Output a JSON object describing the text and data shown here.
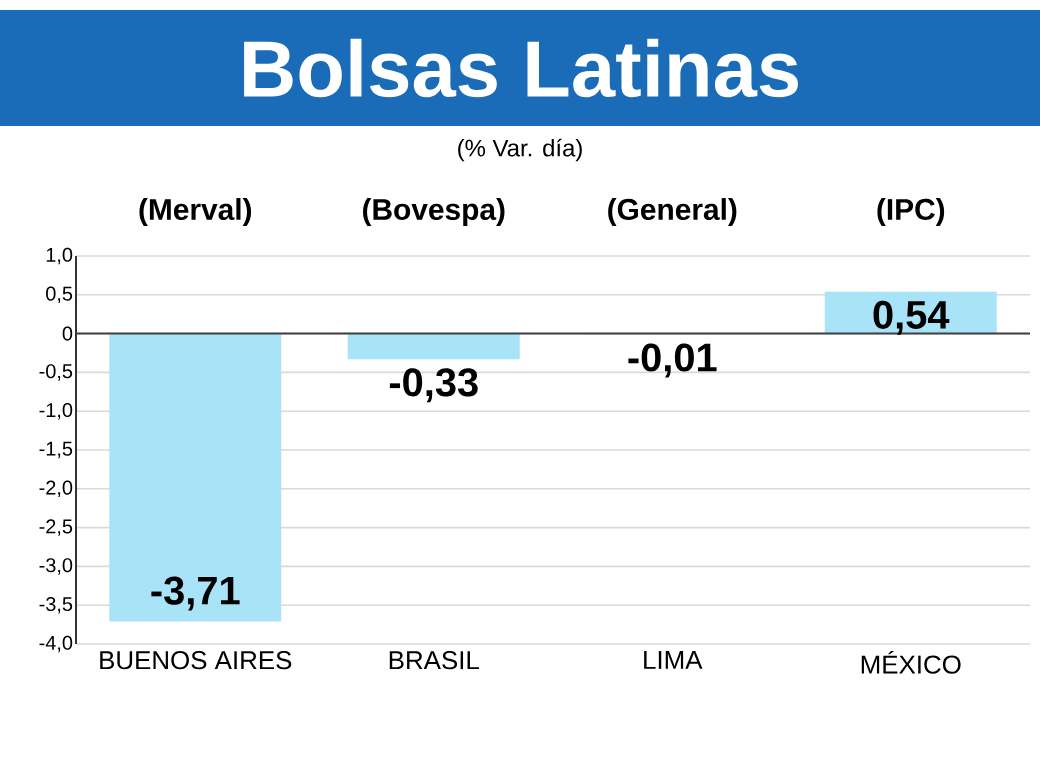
{
  "chart_data": {
    "type": "bar",
    "title": "Bolsas Latinas",
    "subtitle": "(% Var. día)",
    "categories": [
      "BUENOS AIRES",
      "BRASIL",
      "LIMA",
      "MÉXICO"
    ],
    "values": [
      -3.71,
      -0.33,
      -0.01,
      0.54
    ],
    "value_labels": [
      "-3,71",
      "-0,33",
      "-0,01",
      "0,54"
    ],
    "color": "#a8e3f8",
    "annotations": [
      "(Merval)",
      "(Bovespa)",
      "(General)",
      "(IPC)"
    ],
    "ylim": [
      -4.0,
      1.0
    ],
    "yticks": [
      {
        "value": -4.0,
        "label": "-4,0"
      },
      {
        "value": -3.5,
        "label": "-3,5"
      },
      {
        "value": -3.0,
        "label": "-3,0"
      },
      {
        "value": -2.5,
        "label": "-2,5"
      },
      {
        "value": -2.0,
        "label": "-2,0"
      },
      {
        "value": -1.5,
        "label": "-1,5"
      },
      {
        "value": -1.0,
        "label": "-1,0"
      },
      {
        "value": -0.5,
        "label": "-0,5"
      },
      0,
      {
        "value": 0.5,
        "label": "0,5"
      },
      {
        "value": 1.0,
        "label": "1,0"
      }
    ],
    "grid": "y"
  }
}
